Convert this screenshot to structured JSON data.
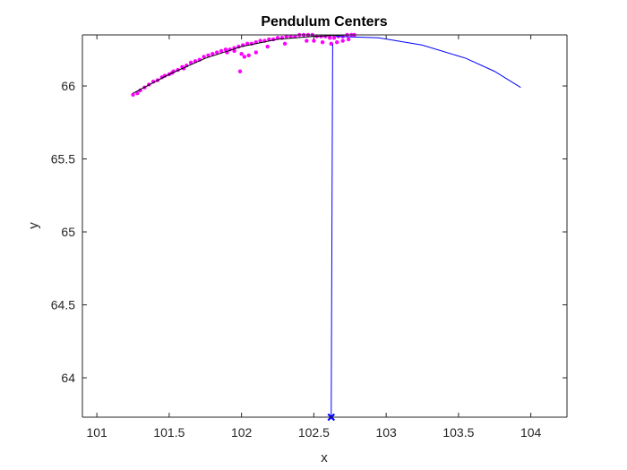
{
  "chart_data": {
    "type": "scatter",
    "title": "Pendulum Centers",
    "xlabel": "x",
    "ylabel": "y",
    "xlim": [
      100.9,
      104.25
    ],
    "ylim": [
      63.73,
      66.35
    ],
    "xticks": [
      101,
      101.5,
      102,
      102.5,
      103,
      103.5,
      104
    ],
    "yticks": [
      64,
      64.5,
      65,
      65.5,
      66
    ],
    "xtick_labels": [
      "101",
      "101.5",
      "102",
      "102.5",
      "103",
      "103.5",
      "104"
    ],
    "ytick_labels": [
      "64",
      "64.5",
      "65",
      "65.5",
      "66"
    ],
    "grid": false,
    "legend": "none",
    "colors": {
      "points": "#ff00ff",
      "fit_curve": "#000000",
      "arc": "#0000ff",
      "pivot": "#0000ff",
      "axes": "#262626"
    },
    "series": [
      {
        "type": "scatter",
        "points": [
          [
            101.25,
            65.94
          ],
          [
            101.28,
            65.95
          ],
          [
            101.3,
            65.97
          ],
          [
            101.33,
            65.99
          ],
          [
            101.36,
            66.01
          ],
          [
            101.39,
            66.03
          ],
          [
            101.42,
            66.04
          ],
          [
            101.45,
            66.06
          ],
          [
            101.47,
            66.07
          ],
          [
            101.5,
            66.08
          ],
          [
            101.53,
            66.1
          ],
          [
            101.56,
            66.11
          ],
          [
            101.59,
            66.13
          ],
          [
            101.62,
            66.14
          ],
          [
            101.65,
            66.16
          ],
          [
            101.68,
            66.17
          ],
          [
            101.71,
            66.18
          ],
          [
            101.74,
            66.2
          ],
          [
            101.77,
            66.21
          ],
          [
            101.8,
            66.22
          ],
          [
            101.83,
            66.23
          ],
          [
            101.86,
            66.24
          ],
          [
            101.89,
            66.25
          ],
          [
            101.92,
            66.25
          ],
          [
            101.95,
            66.26
          ],
          [
            101.98,
            66.27
          ],
          [
            102.01,
            66.28
          ],
          [
            102.04,
            66.29
          ],
          [
            102.07,
            66.29
          ],
          [
            102.1,
            66.3
          ],
          [
            102.13,
            66.31
          ],
          [
            102.16,
            66.31
          ],
          [
            102.19,
            66.32
          ],
          [
            102.22,
            66.32
          ],
          [
            102.25,
            66.33
          ],
          [
            102.28,
            66.33
          ],
          [
            102.31,
            66.34
          ],
          [
            102.34,
            66.34
          ],
          [
            102.37,
            66.34
          ],
          [
            102.4,
            66.35
          ],
          [
            102.43,
            66.35
          ],
          [
            102.46,
            66.35
          ],
          [
            102.49,
            66.35
          ],
          [
            102.52,
            66.34
          ],
          [
            102.55,
            66.34
          ],
          [
            102.58,
            66.34
          ],
          [
            102.61,
            66.33
          ],
          [
            102.64,
            66.33
          ],
          [
            102.67,
            66.34
          ],
          [
            102.7,
            66.34
          ],
          [
            102.73,
            66.35
          ],
          [
            102.76,
            66.35
          ],
          [
            102.78,
            66.35
          ],
          [
            101.52,
            66.09
          ],
          [
            101.6,
            66.12
          ],
          [
            101.9,
            66.23
          ],
          [
            101.95,
            66.24
          ],
          [
            102.0,
            66.22
          ],
          [
            102.02,
            66.2
          ],
          [
            102.05,
            66.21
          ],
          [
            102.1,
            66.23
          ],
          [
            102.18,
            66.27
          ],
          [
            102.3,
            66.29
          ],
          [
            102.45,
            66.31
          ],
          [
            102.5,
            66.31
          ],
          [
            102.56,
            66.3
          ],
          [
            102.62,
            66.29
          ],
          [
            102.66,
            66.3
          ],
          [
            102.7,
            66.31
          ],
          [
            102.74,
            66.32
          ],
          [
            101.99,
            66.1
          ]
        ]
      },
      {
        "type": "line",
        "name": "fit",
        "x": [
          101.25,
          101.5,
          101.75,
          102.0,
          102.25,
          102.5,
          102.75
        ],
        "y": [
          65.95,
          66.08,
          66.19,
          66.27,
          66.32,
          66.34,
          66.35
        ]
      },
      {
        "type": "line",
        "name": "arc",
        "x": [
          102.65,
          102.95,
          103.25,
          103.55,
          103.75,
          103.93
        ],
        "y": [
          66.34,
          66.33,
          66.28,
          66.19,
          66.1,
          65.99
        ]
      },
      {
        "type": "line",
        "name": "radius",
        "x": [
          102.62,
          102.63
        ],
        "y": [
          63.73,
          66.29
        ]
      },
      {
        "type": "marker",
        "name": "pivot",
        "x": 102.62,
        "y": 63.73
      }
    ]
  }
}
